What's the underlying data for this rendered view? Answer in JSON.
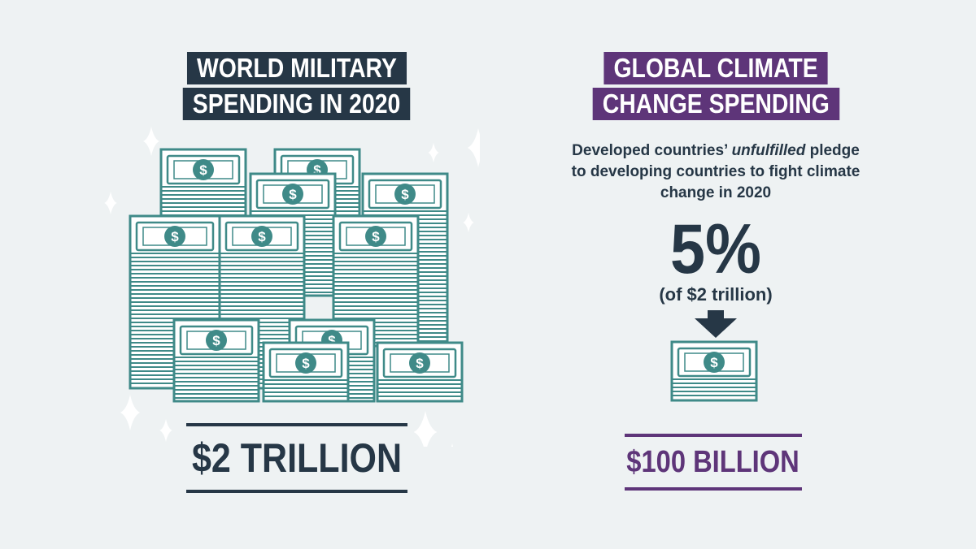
{
  "left": {
    "heading_lines": [
      "WORLD MILITARY",
      "SPENDING IN 2020"
    ],
    "total": "$2 TRILLION"
  },
  "right": {
    "heading_lines": [
      "GLOBAL CLIMATE",
      "CHANGE SPENDING"
    ],
    "description": {
      "part1": "Developed countries’ ",
      "emphasis": "unfulfilled",
      "part2": " pledge to developing countries to fight climate change in 2020"
    },
    "percent": "5%",
    "percent_note": "(of $2 trillion)",
    "total": "$100 BILLION"
  },
  "bill_symbol": "$",
  "colors": {
    "background": "#eef2f3",
    "dark": "#263746",
    "purple": "#5e3579",
    "money_teal": "#3f8a88",
    "sparkle": "#ffffff"
  },
  "icons": [
    "money-stack-icon",
    "dollar-bill-icon",
    "sparkle-icon",
    "down-arrow-icon"
  ]
}
